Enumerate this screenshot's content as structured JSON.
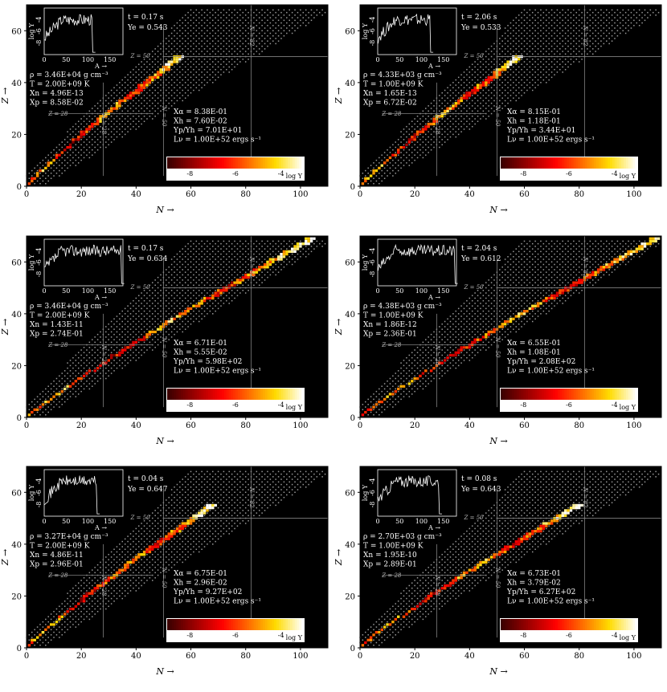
{
  "chart_data": [
    {
      "type": "heatmap",
      "panel": "top-left",
      "xlabel": "N →",
      "ylabel": "Z →",
      "xlim": [
        0,
        110
      ],
      "ylim": [
        0,
        70
      ],
      "xticks": [
        "0",
        "20",
        "40",
        "60",
        "80",
        "100"
      ],
      "yticks": [
        "0",
        "20",
        "40",
        "60"
      ],
      "magic_labels": [
        "Z = 50",
        "Z = 28",
        "N = 28",
        "N = 50",
        "N = 82"
      ],
      "info": {
        "t": "t = 0.17 s",
        "ye": "Ye = 0.543"
      },
      "conditions": [
        "ρ = 3.46E+04 g cm⁻³",
        "T = 2.00E+09 K",
        "Xn = 4.96E-13",
        "Xp = 8.58E-02"
      ],
      "fractions": [
        "Xα = 8.38E-01",
        "Xh = 7.60E-02",
        "Yp/Yh = 7.01E+01",
        "Lν = 1.00E+52 ergs s⁻¹"
      ],
      "colorbar": {
        "label": "log Y",
        "ticks": [
          "-8",
          "-6",
          "-4"
        ],
        "range": [
          -9,
          -3
        ]
      },
      "inset": {
        "xlabel": "A →",
        "ylabel": "log Y",
        "xticks": [
          "0",
          "50",
          "100",
          "150"
        ],
        "yticks": [
          "-8",
          "-6",
          "-4"
        ],
        "cutoff_A": 110
      },
      "path_end": [
        56,
        50
      ]
    },
    {
      "type": "heatmap",
      "panel": "top-right",
      "xlabel": "N →",
      "ylabel": "Z →",
      "xlim": [
        0,
        110
      ],
      "ylim": [
        0,
        70
      ],
      "xticks": [
        "0",
        "20",
        "40",
        "60",
        "80",
        "100"
      ],
      "yticks": [
        "0",
        "20",
        "40",
        "60"
      ],
      "magic_labels": [
        "Z = 50",
        "Z = 28",
        "N = 28",
        "N = 50",
        "N = 82"
      ],
      "info": {
        "t": "t = 2.06 s",
        "ye": "Ye = 0.533"
      },
      "conditions": [
        "ρ = 4.33E+03 g cm⁻³",
        "T = 1.00E+09 K",
        "Xn = 1.65E-13",
        "Xp = 6.72E-02"
      ],
      "fractions": [
        "Xα = 8.15E-01",
        "Xh = 1.18E-01",
        "Yp/Yh = 3.44E+01",
        "Lν = 1.00E+52 ergs s⁻¹"
      ],
      "colorbar": {
        "label": "log Y",
        "ticks": [
          "-8",
          "-6",
          "-4"
        ],
        "range": [
          -9,
          -3
        ]
      },
      "inset": {
        "xlabel": "A →",
        "ylabel": "log Y",
        "xticks": [
          "0",
          "50",
          "100",
          "150"
        ],
        "yticks": [
          "-8",
          "-6",
          "-4"
        ],
        "cutoff_A": 120
      },
      "path_end": [
        58,
        50
      ]
    },
    {
      "type": "heatmap",
      "panel": "middle-left",
      "xlabel": "N →",
      "ylabel": "Z →",
      "xlim": [
        0,
        110
      ],
      "ylim": [
        0,
        70
      ],
      "xticks": [
        "0",
        "20",
        "40",
        "60",
        "80",
        "100"
      ],
      "yticks": [
        "0",
        "20",
        "40",
        "60"
      ],
      "magic_labels": [
        "Z = 50",
        "Z = 28",
        "N = 28",
        "N = 50",
        "N = 82"
      ],
      "info": {
        "t": "t = 0.17 s",
        "ye": "Ye = 0.634"
      },
      "conditions": [
        "ρ = 3.46E+04 g cm⁻³",
        "T = 2.00E+09 K",
        "Xn = 1.43E-11",
        "Xp = 2.74E-01"
      ],
      "fractions": [
        "Xα = 6.71E-01",
        "Xh = 5.55E-02",
        "Yp/Yh = 5.98E+02",
        "Lν = 1.00E+52 ergs s⁻¹"
      ],
      "colorbar": {
        "label": "log Y",
        "ticks": [
          "-8",
          "-6",
          "-4"
        ],
        "range": [
          -9,
          -3
        ]
      },
      "inset": {
        "xlabel": "A →",
        "ylabel": "log Y",
        "xticks": [
          "0",
          "50",
          "100",
          "150"
        ],
        "yticks": [
          "-8",
          "-6",
          "-4"
        ],
        "cutoff_A": 175
      },
      "path_end": [
        104,
        69
      ]
    },
    {
      "type": "heatmap",
      "panel": "middle-right",
      "xlabel": "N →",
      "ylabel": "Z →",
      "xlim": [
        0,
        110
      ],
      "ylim": [
        0,
        70
      ],
      "xticks": [
        "0",
        "20",
        "40",
        "60",
        "80",
        "100"
      ],
      "yticks": [
        "0",
        "20",
        "40",
        "60"
      ],
      "magic_labels": [
        "Z = 50",
        "Z = 28",
        "N = 28",
        "N = 50",
        "N = 82"
      ],
      "info": {
        "t": "t = 2.04 s",
        "ye": "Ye = 0.612"
      },
      "conditions": [
        "ρ = 4.38E+03 g cm⁻³",
        "T = 1.00E+09 K",
        "Xn = 1.86E-12",
        "Xp = 2.36E-01"
      ],
      "fractions": [
        "Xα = 6.55E-01",
        "Xh = 1.08E-01",
        "Yp/Yh = 2.08E+02",
        "Lν = 1.00E+52 ergs s⁻¹"
      ],
      "colorbar": {
        "label": "log Y",
        "ticks": [
          "-8",
          "-6",
          "-4"
        ],
        "range": [
          -9,
          -3
        ]
      },
      "inset": {
        "xlabel": "A →",
        "ylabel": "log Y",
        "xticks": [
          "0",
          "50",
          "100",
          "150"
        ],
        "yticks": [
          "-8",
          "-6",
          "-4"
        ],
        "cutoff_A": 175
      },
      "path_end": [
        108,
        69
      ]
    },
    {
      "type": "heatmap",
      "panel": "bottom-left",
      "xlabel": "N →",
      "ylabel": "Z →",
      "xlim": [
        0,
        110
      ],
      "ylim": [
        0,
        70
      ],
      "xticks": [
        "0",
        "20",
        "40",
        "60",
        "80",
        "100"
      ],
      "yticks": [
        "0",
        "20",
        "40",
        "60"
      ],
      "magic_labels": [
        "Z = 50",
        "Z = 28",
        "N = 28",
        "N = 50",
        "N = 82"
      ],
      "info": {
        "t": "t = 0.04 s",
        "ye": "Ye = 0.647"
      },
      "conditions": [
        "ρ = 3.27E+04 g cm⁻³",
        "T = 2.00E+09 K",
        "Xn = 4.86E-11",
        "Xp = 2.96E-01"
      ],
      "fractions": [
        "Xα = 6.75E-01",
        "Xh = 2.96E-02",
        "Yp/Yh = 9.27E+02",
        "Lν = 1.00E+52 ergs s⁻¹"
      ],
      "colorbar": {
        "label": "log Y",
        "ticks": [
          "-8",
          "-6",
          "-4"
        ],
        "range": [
          -9,
          -3
        ]
      },
      "inset": {
        "xlabel": "A →",
        "ylabel": "log Y",
        "xticks": [
          "0",
          "50",
          "100",
          "150"
        ],
        "yticks": [
          "-8",
          "-6",
          "-4"
        ],
        "cutoff_A": 120
      },
      "path_end": [
        68,
        55
      ]
    },
    {
      "type": "heatmap",
      "panel": "bottom-right",
      "xlabel": "N →",
      "ylabel": "Z →",
      "xlim": [
        0,
        110
      ],
      "ylim": [
        0,
        70
      ],
      "xticks": [
        "0",
        "20",
        "40",
        "60",
        "80",
        "100"
      ],
      "yticks": [
        "0",
        "20",
        "40",
        "60"
      ],
      "magic_labels": [
        "Z = 50",
        "Z = 28",
        "N = 28",
        "N = 50",
        "N = 82"
      ],
      "info": {
        "t": "t = 0.08 s",
        "ye": "Ye = 0.643"
      },
      "conditions": [
        "ρ = 2.70E+03 g cm⁻³",
        "T = 1.00E+09 K",
        "Xn = 1.95E-10",
        "Xp = 2.89E-01"
      ],
      "fractions": [
        "Xα = 6.73E-01",
        "Xh = 3.79E-02",
        "Yp/Yh = 6.27E+02",
        "Lν = 1.00E+52 ergs s⁻¹"
      ],
      "colorbar": {
        "label": "log Y",
        "ticks": [
          "-8",
          "-6",
          "-4"
        ],
        "range": [
          -9,
          -3
        ]
      },
      "inset": {
        "xlabel": "A →",
        "ylabel": "log Y",
        "xticks": [
          "0",
          "50",
          "100",
          "150"
        ],
        "yticks": [
          "-8",
          "-6",
          "-4"
        ],
        "cutoff_A": 140
      },
      "path_end": [
        80,
        55
      ]
    }
  ],
  "colors": {
    "background": "#000000",
    "grid": "#808080",
    "hot_low": "#3a0000",
    "hot_mid": "#ff8c00",
    "hot_high": "#ffffff"
  }
}
